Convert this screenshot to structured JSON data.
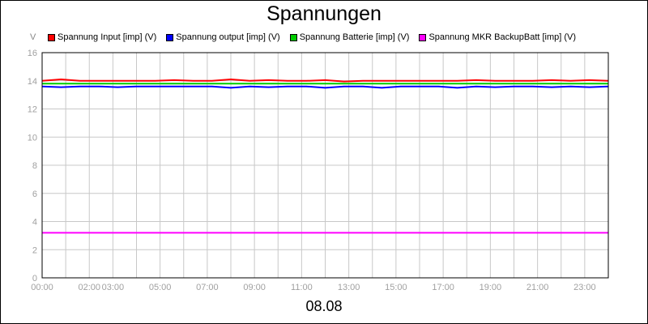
{
  "chart_data": {
    "type": "line",
    "title": "Spannungen",
    "ylabel": "V",
    "xlabel": "08.08",
    "ylim": [
      0,
      16
    ],
    "xlim": [
      "00:00",
      "24:00"
    ],
    "grid": true,
    "legend_position": "top",
    "y_ticks": [
      "0",
      "2",
      "4",
      "6",
      "8",
      "10",
      "12",
      "14",
      "16"
    ],
    "x_ticks": [
      "00:00",
      "02:00",
      "03:00",
      "05:00",
      "07:00",
      "09:00",
      "11:00",
      "13:00",
      "15:00",
      "17:00",
      "19:00",
      "21:00",
      "23:00"
    ],
    "x_tick_hours": [
      0,
      2,
      3,
      5,
      7,
      9,
      11,
      13,
      15,
      17,
      19,
      21,
      23
    ],
    "x_grid_hours": [
      1,
      2,
      3,
      4,
      5,
      6,
      7,
      8,
      9,
      10,
      11,
      12,
      13,
      14,
      15,
      16,
      17,
      18,
      19,
      20,
      21,
      22,
      23
    ],
    "series": [
      {
        "name": "Spannung Input [imp] (V)",
        "color": "#ff0000",
        "x": [
          "00:00",
          "00:48",
          "01:36",
          "02:24",
          "03:12",
          "04:00",
          "04:48",
          "05:36",
          "06:24",
          "07:12",
          "08:00",
          "08:48",
          "09:36",
          "10:24",
          "11:12",
          "12:00",
          "12:48",
          "13:36",
          "14:24",
          "15:12",
          "16:00",
          "16:48",
          "17:36",
          "18:24",
          "19:12",
          "20:00",
          "20:48",
          "21:36",
          "22:24",
          "23:12",
          "24:00"
        ],
        "y": [
          14.0,
          14.1,
          14.0,
          14.0,
          14.0,
          14.0,
          14.0,
          14.05,
          14.0,
          14.0,
          14.1,
          14.0,
          14.05,
          14.0,
          14.0,
          14.05,
          13.95,
          14.0,
          14.0,
          14.0,
          14.0,
          14.0,
          14.0,
          14.05,
          14.0,
          14.0,
          14.0,
          14.05,
          14.0,
          14.05,
          14.0
        ]
      },
      {
        "name": "Spannung output [imp] (V)",
        "color": "#0000ff",
        "x": [
          "00:00",
          "00:48",
          "01:36",
          "02:24",
          "03:12",
          "04:00",
          "04:48",
          "05:36",
          "06:24",
          "07:12",
          "08:00",
          "08:48",
          "09:36",
          "10:24",
          "11:12",
          "12:00",
          "12:48",
          "13:36",
          "14:24",
          "15:12",
          "16:00",
          "16:48",
          "17:36",
          "18:24",
          "19:12",
          "20:00",
          "20:48",
          "21:36",
          "22:24",
          "23:12",
          "24:00"
        ],
        "y": [
          13.6,
          13.55,
          13.6,
          13.6,
          13.55,
          13.6,
          13.6,
          13.6,
          13.6,
          13.6,
          13.5,
          13.6,
          13.55,
          13.6,
          13.6,
          13.5,
          13.6,
          13.6,
          13.5,
          13.6,
          13.6,
          13.6,
          13.5,
          13.6,
          13.55,
          13.6,
          13.6,
          13.55,
          13.6,
          13.55,
          13.6
        ]
      },
      {
        "name": "Spannung Batterie [imp] (V)",
        "color": "#00cc00",
        "x": [
          "00:00",
          "24:00"
        ],
        "y": [
          13.8,
          13.8
        ]
      },
      {
        "name": "Spannung MKR BackupBatt [imp] (V)",
        "color": "#ff00ff",
        "x": [
          "00:00",
          "24:00"
        ],
        "y": [
          3.2,
          3.2
        ]
      }
    ]
  }
}
